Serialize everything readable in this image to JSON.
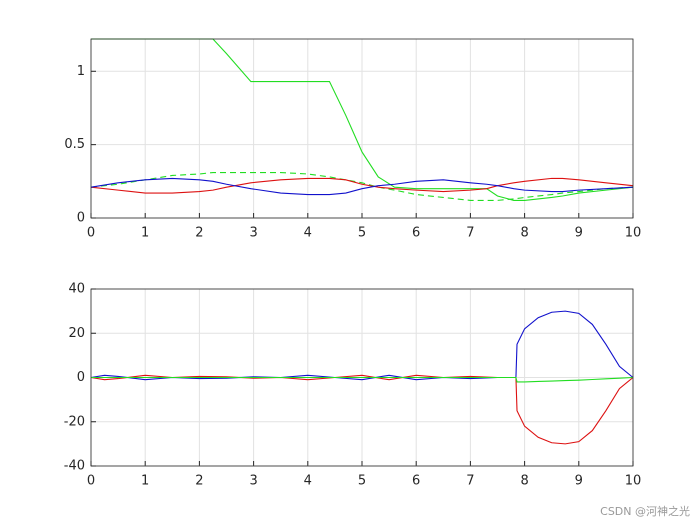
{
  "chart_data": [
    {
      "type": "line",
      "grid": true,
      "x": [
        0,
        0.5,
        1,
        1.5,
        2,
        2.25,
        2.5,
        2.95,
        3.5,
        4,
        4.4,
        4.7,
        5,
        5.3,
        5.6,
        6,
        6.5,
        7,
        7.3,
        7.5,
        7.8,
        8,
        8.5,
        8.7,
        9,
        9.5,
        10
      ],
      "xlim": [
        0,
        10
      ],
      "xticks": [
        0,
        1,
        2,
        3,
        4,
        5,
        6,
        7,
        8,
        9,
        10
      ],
      "ylim": [
        0,
        1.22
      ],
      "yticks": [
        0,
        0.5,
        1
      ],
      "series": [
        {
          "color": "#22dd22",
          "style": "solid",
          "values": [
            1.22,
            1.22,
            1.22,
            1.22,
            1.22,
            1.22,
            1.12,
            0.93,
            0.93,
            0.93,
            0.93,
            0.7,
            0.45,
            0.28,
            0.21,
            0.2,
            0.2,
            0.2,
            0.2,
            0.15,
            0.12,
            0.12,
            0.14,
            0.15,
            0.17,
            0.19,
            0.21
          ]
        },
        {
          "color": "#22dd22",
          "style": "dashed",
          "values": [
            0.21,
            0.23,
            0.26,
            0.29,
            0.3,
            0.31,
            0.31,
            0.31,
            0.31,
            0.3,
            0.28,
            0.26,
            0.24,
            0.21,
            0.19,
            0.16,
            0.14,
            0.12,
            0.12,
            0.12,
            0.13,
            0.14,
            0.16,
            0.17,
            0.18,
            0.2,
            0.21
          ]
        },
        {
          "color": "#dd1111",
          "style": "solid",
          "values": [
            0.21,
            0.19,
            0.17,
            0.17,
            0.18,
            0.19,
            0.21,
            0.24,
            0.26,
            0.27,
            0.27,
            0.26,
            0.23,
            0.21,
            0.2,
            0.19,
            0.18,
            0.19,
            0.2,
            0.22,
            0.24,
            0.25,
            0.27,
            0.27,
            0.26,
            0.24,
            0.22
          ]
        },
        {
          "color": "#1111cc",
          "style": "solid",
          "values": [
            0.21,
            0.24,
            0.26,
            0.27,
            0.26,
            0.25,
            0.23,
            0.2,
            0.17,
            0.16,
            0.16,
            0.17,
            0.2,
            0.22,
            0.23,
            0.25,
            0.26,
            0.24,
            0.23,
            0.22,
            0.2,
            0.19,
            0.18,
            0.18,
            0.19,
            0.2,
            0.21
          ]
        }
      ]
    },
    {
      "type": "line",
      "grid": true,
      "x": [
        0,
        0.25,
        0.5,
        1,
        1.5,
        2,
        2.5,
        3,
        3.5,
        4,
        4.5,
        5,
        5.5,
        6,
        6.5,
        7,
        7.5,
        7.84,
        7.86,
        8,
        8.25,
        8.5,
        8.75,
        9,
        9.25,
        9.5,
        9.75,
        10
      ],
      "xlim": [
        0,
        10
      ],
      "xticks": [
        0,
        1,
        2,
        3,
        4,
        5,
        6,
        7,
        8,
        9,
        10
      ],
      "ylim": [
        -40,
        40
      ],
      "yticks": [
        -40,
        -20,
        0,
        20,
        40
      ],
      "series": [
        {
          "color": "#1111cc",
          "style": "solid",
          "values": [
            0,
            1,
            0.5,
            -1,
            0,
            -0.5,
            -0.3,
            0.3,
            0,
            1,
            0,
            -1,
            1,
            -1,
            0,
            -0.5,
            0,
            0,
            15,
            22,
            27,
            29.5,
            30,
            29,
            24,
            15,
            5,
            0
          ]
        },
        {
          "color": "#dd1111",
          "style": "solid",
          "values": [
            0,
            -1,
            -0.5,
            1,
            0,
            0.5,
            0.3,
            -0.3,
            0,
            -1,
            0,
            1,
            -1,
            1,
            0,
            0.5,
            0,
            0,
            -15,
            -22,
            -27,
            -29.5,
            -30,
            -29,
            -24,
            -15,
            -5,
            0
          ]
        },
        {
          "color": "#22dd22",
          "style": "solid",
          "values": [
            0,
            0,
            0,
            0,
            0,
            0,
            0,
            0,
            0,
            0,
            0,
            0,
            0,
            0,
            0,
            0,
            0,
            0,
            -2,
            -2,
            -1.8,
            -1.6,
            -1.4,
            -1.2,
            -0.9,
            -0.6,
            -0.3,
            0
          ]
        }
      ]
    }
  ],
  "watermark": "CSDN @河神之光"
}
